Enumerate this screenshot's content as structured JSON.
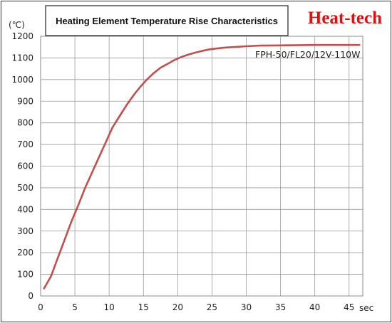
{
  "brand": {
    "logo_text": "Heat-tech",
    "color": "#e01010"
  },
  "chart_data": {
    "type": "line",
    "title": "Heating Element Temperature Rise Characteristics",
    "y_unit_label": "(℃)",
    "x_unit_label": "sec",
    "xlim": [
      0,
      47
    ],
    "ylim": [
      0,
      1200
    ],
    "x_ticks": [
      0,
      5,
      10,
      15,
      20,
      25,
      30,
      35,
      40,
      45
    ],
    "y_ticks": [
      0,
      100,
      200,
      300,
      400,
      500,
      600,
      700,
      800,
      900,
      1000,
      1100,
      1200
    ],
    "grid": true,
    "line_color": "#c0504d",
    "series": [
      {
        "name": "FPH-50/FL20/12V-110W",
        "x": [
          0.5,
          1.5,
          2.5,
          3.5,
          4.5,
          5.5,
          6.5,
          7.5,
          8.5,
          9.5,
          10.5,
          11.5,
          12.5,
          13.5,
          14.5,
          15.5,
          16.5,
          17.5,
          18.5,
          19.5,
          20.5,
          21.5,
          22.5,
          23.5,
          24.5,
          25.5,
          27,
          28.5,
          30,
          32,
          35,
          40,
          45,
          46.5
        ],
        "y": [
          35,
          90,
          175,
          260,
          345,
          420,
          500,
          570,
          640,
          710,
          780,
          830,
          880,
          925,
          965,
          1000,
          1030,
          1055,
          1072,
          1090,
          1104,
          1115,
          1124,
          1132,
          1139,
          1143,
          1148,
          1151,
          1154,
          1157,
          1158,
          1160,
          1160,
          1160
        ]
      }
    ]
  }
}
